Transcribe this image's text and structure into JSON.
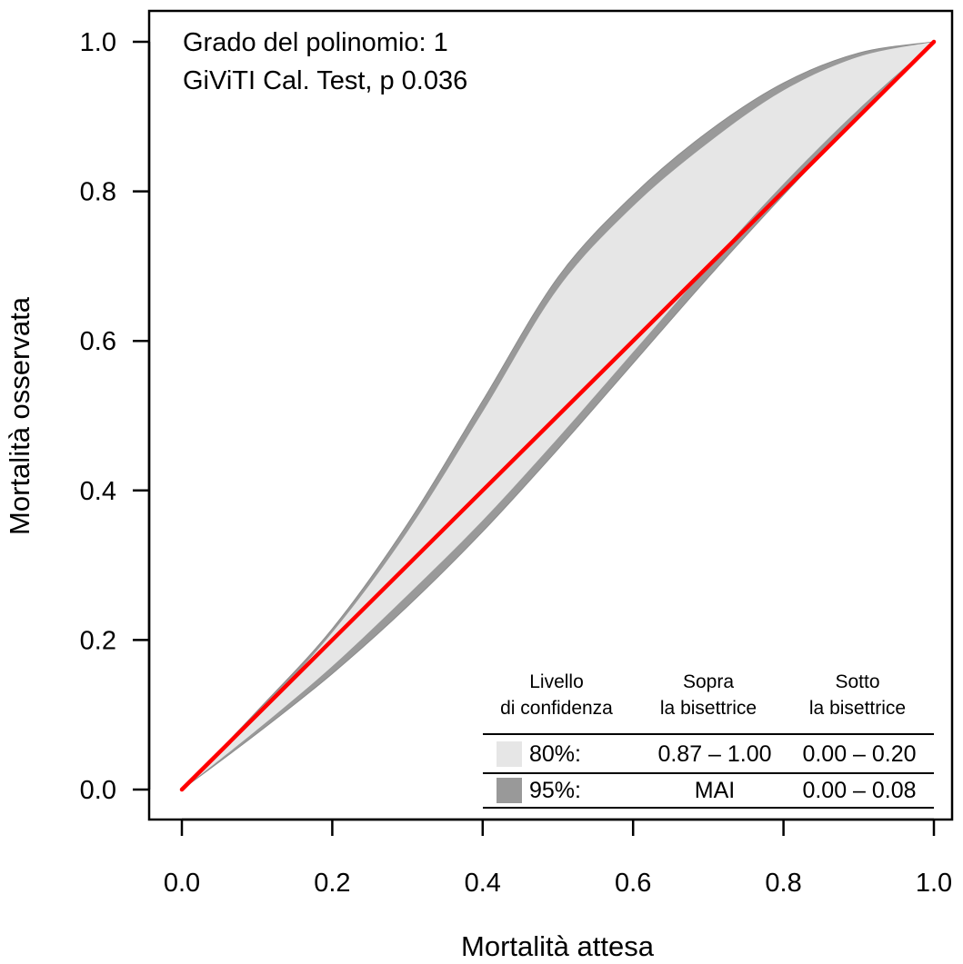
{
  "chart_data": {
    "type": "line",
    "xlabel": "Mortalità attesa",
    "ylabel": "Mortalità osservata",
    "xlim": [
      0.0,
      1.0
    ],
    "ylim": [
      0.0,
      1.0
    ],
    "xticks": [
      "0.0",
      "0.2",
      "0.4",
      "0.6",
      "0.8",
      "1.0"
    ],
    "yticks": [
      "0.0",
      "0.2",
      "0.4",
      "0.6",
      "0.8",
      "1.0"
    ],
    "grid": false,
    "annotations": [
      "Grado del polinomio: 1",
      "GiViTI Cal. Test, p 0.036"
    ],
    "series": [
      {
        "role": "bisector",
        "color": "#ff0000",
        "x": [
          0.0,
          1.0
        ],
        "y": [
          0.0,
          1.0
        ]
      },
      {
        "role": "band-95",
        "color": "#999999",
        "x": [
          0.0,
          0.1,
          0.2,
          0.3,
          0.4,
          0.5,
          0.6,
          0.7,
          0.8,
          0.9,
          1.0
        ],
        "upper": [
          0.0,
          0.105,
          0.215,
          0.355,
          0.52,
          0.685,
          0.795,
          0.88,
          0.945,
          0.985,
          1.0
        ],
        "lower": [
          0.0,
          0.075,
          0.155,
          0.245,
          0.345,
          0.455,
          0.57,
          0.685,
          0.795,
          0.9,
          1.0
        ]
      },
      {
        "role": "band-80",
        "color": "#e6e6e6",
        "x": [
          0.0,
          0.1,
          0.2,
          0.3,
          0.4,
          0.5,
          0.6,
          0.7,
          0.8,
          0.9,
          1.0
        ],
        "upper": [
          0.0,
          0.1,
          0.21,
          0.345,
          0.505,
          0.67,
          0.78,
          0.865,
          0.935,
          0.98,
          1.0
        ],
        "lower": [
          0.0,
          0.08,
          0.165,
          0.26,
          0.36,
          0.47,
          0.585,
          0.7,
          0.81,
          0.91,
          1.0
        ]
      }
    ],
    "legend_table": {
      "headers": [
        [
          "Livello",
          "di confidenza"
        ],
        [
          "Sopra",
          "la bisettrice"
        ],
        [
          "Sotto",
          "la bisettrice"
        ]
      ],
      "rows": [
        {
          "swatch": "#e6e6e6",
          "level": "80%:",
          "above": "0.87 – 1.00",
          "below": "0.00 – 0.20"
        },
        {
          "swatch": "#999999",
          "level": "95%:",
          "above": "MAI",
          "below": "0.00 – 0.08"
        }
      ]
    }
  }
}
